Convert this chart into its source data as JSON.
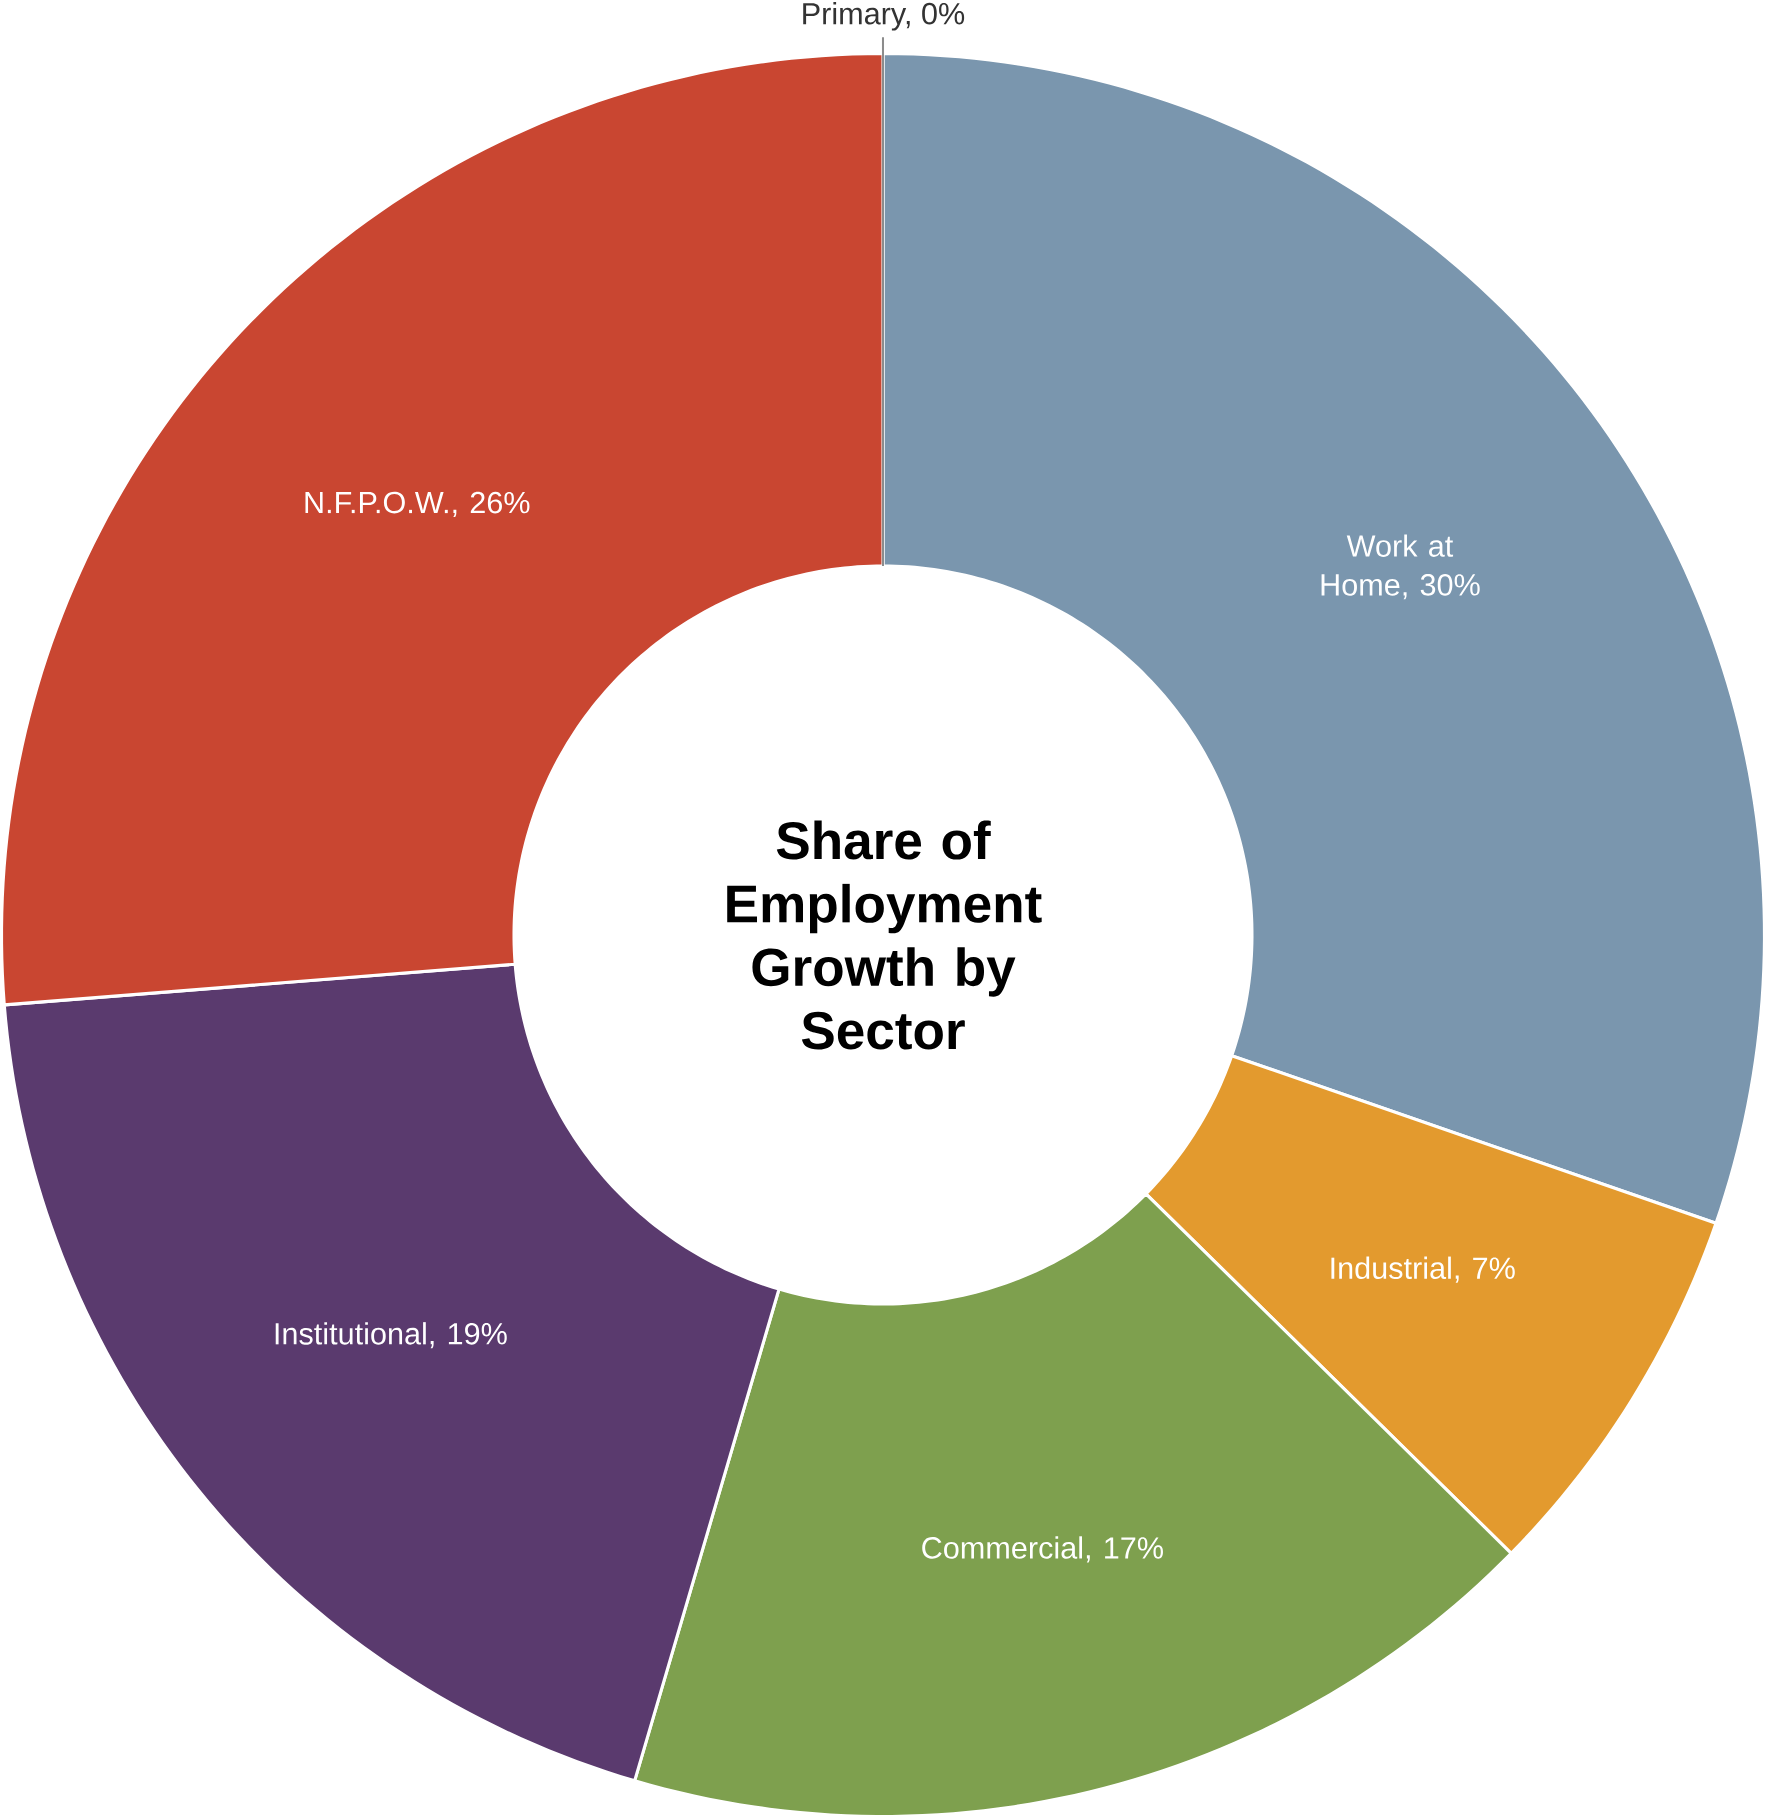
{
  "chart_data": {
    "type": "donut",
    "title": "Share of Employment Growth by Sector",
    "categories": [
      "Work at Home, 30%",
      "Industrial, 7%",
      "Commercial, 17%",
      "Institutional, 19%",
      "N.F.P.O.W., 26%",
      "Primary, 0%"
    ],
    "values": [
      30,
      7,
      17,
      19,
      26,
      0
    ],
    "colors": [
      "#7a96ae",
      "#e39a2e",
      "#7ea04e",
      "#5a3a6e",
      "#c94631",
      "#8c8c8c"
    ]
  }
}
